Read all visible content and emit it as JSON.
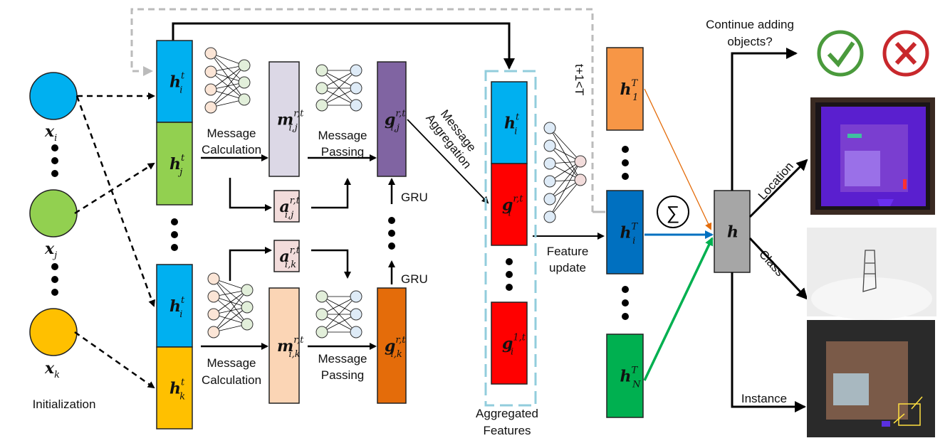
{
  "nodes": {
    "xi": {
      "base": "x",
      "sub": "i",
      "color": "#00b0f0"
    },
    "xj": {
      "base": "x",
      "sub": "j",
      "color": "#92d050"
    },
    "xk": {
      "base": "x",
      "sub": "k",
      "color": "#ffc000"
    }
  },
  "initialization": "Initialization",
  "blocks": {
    "h_i_top": {
      "base": "h",
      "sup": "t",
      "sub": "i",
      "color": "#00b0f0"
    },
    "h_j": {
      "base": "h",
      "sup": "t",
      "sub": "j",
      "color": "#92d050"
    },
    "h_i_bot": {
      "base": "h",
      "sup": "t",
      "sub": "i",
      "color": "#00b0f0"
    },
    "h_k": {
      "base": "h",
      "sup": "t",
      "sub": "k",
      "color": "#ffc000"
    },
    "m_ij": {
      "base": "m",
      "sup": "r,t",
      "sub": "i,j",
      "color": "#dcd8e6"
    },
    "m_ik": {
      "base": "m",
      "sup": "r,t",
      "sub": "i,k",
      "color": "#fbd5b5"
    },
    "a_ij": {
      "base": "a",
      "sup": "r,t",
      "sub": "i,j",
      "color": "#f2dcdb"
    },
    "a_ik": {
      "base": "a",
      "sup": "r,t",
      "sub": "i,k",
      "color": "#f2dcdb"
    },
    "g_ij": {
      "base": "g",
      "sup": "r,t",
      "sub": "i,j",
      "color": "#8064a2"
    },
    "g_ik": {
      "base": "g",
      "sup": "r,t",
      "sub": "i,k",
      "color": "#e46c0a"
    },
    "agg_h": {
      "base": "h",
      "sup": "t",
      "sub": "i",
      "color": "#00b0f0"
    },
    "agg_g_r": {
      "base": "g",
      "sup": "r,t",
      "sub": "i",
      "color": "#ff0000"
    },
    "agg_g_1": {
      "base": "g",
      "sup": "1,t",
      "sub": "i",
      "color": "#ff0000"
    },
    "hT_1": {
      "base": "h",
      "sup": "T",
      "sub": "1",
      "color": "#f79646"
    },
    "hT_i": {
      "base": "h",
      "sup": "T",
      "sub": "i",
      "color": "#0070c0"
    },
    "hT_N": {
      "base": "h",
      "sup": "T",
      "sub": "N",
      "color": "#00b050"
    },
    "h": {
      "base": "h",
      "color": "#a6a6a6"
    }
  },
  "labels": {
    "msg_calc_1": "Message",
    "msg_calc_2": "Calculation",
    "msg_pass_1": "Message",
    "msg_pass_2": "Passing",
    "gru": "GRU",
    "msg_agg_1": "Message",
    "msg_agg_2": "Aggregation",
    "agg_feat_1": "Aggregated",
    "agg_feat_2": "Features",
    "loop": "t+1<T",
    "feat_upd_1": "Feature",
    "feat_upd_2": "update",
    "sum": "∑",
    "continue_1": "Continue adding",
    "continue_2": "objects?",
    "location": "Location",
    "class": "Class",
    "instance": "Instance"
  },
  "icons": {
    "yes": "check-circle-icon",
    "no": "x-circle-icon",
    "yes_color": "#4a9a3c",
    "no_color": "#c8282c"
  }
}
